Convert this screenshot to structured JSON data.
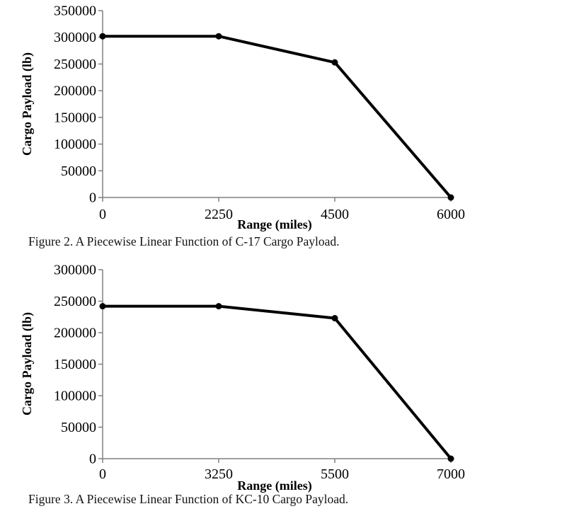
{
  "page": {
    "background_color": "#ffffff",
    "text_color": "#000000",
    "axis_color": "#808080",
    "series_color": "#000000"
  },
  "chart_data": [
    {
      "type": "line",
      "title": "",
      "aircraft": "C-17",
      "xlabel": "Range (miles)",
      "ylabel": "Cargo Payload (lb)",
      "x": [
        0,
        2250,
        4500,
        6000
      ],
      "x_tick_labels": [
        "0",
        "2250",
        "4500",
        "6000"
      ],
      "values": [
        302000,
        302000,
        253000,
        0
      ],
      "y_tick_values": [
        0,
        50000,
        100000,
        150000,
        200000,
        250000,
        300000,
        350000
      ],
      "y_tick_labels": [
        "0",
        "50000",
        "100000",
        "150000",
        "200000",
        "250000",
        "300000",
        "350000"
      ],
      "ylim": [
        0,
        350000
      ],
      "x_axis_spacing": "categorical-even",
      "grid": false,
      "legend_position": "none",
      "marker": "filled-circle",
      "line_color": "#000000",
      "caption": "Figure 2. A Piecewise Linear Function of C-17 Cargo Payload."
    },
    {
      "type": "line",
      "title": "",
      "aircraft": "KC-10",
      "xlabel": "Range (miles)",
      "ylabel": "Cargo Payload (lb)",
      "x": [
        0,
        3250,
        5500,
        7000
      ],
      "x_tick_labels": [
        "0",
        "3250",
        "5500",
        "7000"
      ],
      "values": [
        242000,
        242000,
        223000,
        0
      ],
      "y_tick_values": [
        0,
        50000,
        100000,
        150000,
        200000,
        250000,
        300000
      ],
      "y_tick_labels": [
        "0",
        "50000",
        "100000",
        "150000",
        "200000",
        "250000",
        "300000"
      ],
      "ylim": [
        0,
        300000
      ],
      "x_axis_spacing": "categorical-even",
      "grid": false,
      "legend_position": "none",
      "marker": "filled-circle",
      "line_color": "#000000",
      "caption": "Figure 3. A Piecewise Linear Function of KC-10 Cargo Payload."
    }
  ]
}
